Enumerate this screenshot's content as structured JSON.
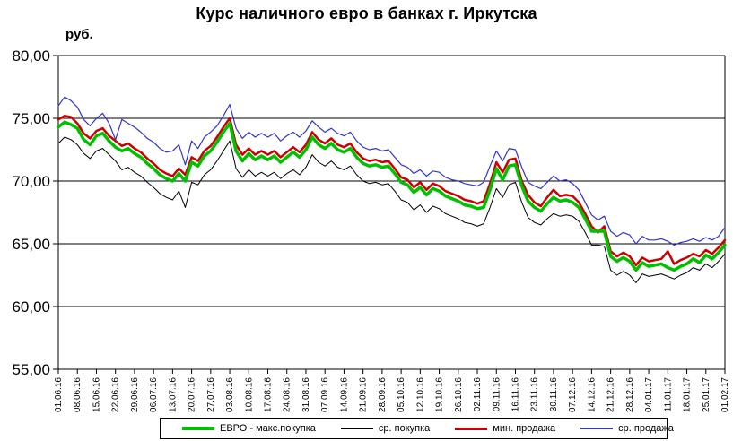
{
  "title": "Курс наличного евро в банках г. Иркутска",
  "y_axis_unit_label": "руб.",
  "chart_data": {
    "type": "line",
    "title": "Курс наличного евро в банках г. Иркутска",
    "xlabel": "",
    "ylabel": "руб.",
    "ylim": [
      55,
      80
    ],
    "grid": true,
    "legend_position": "bottom",
    "y_ticks": [
      {
        "label": "80,00",
        "value": 80
      },
      {
        "label": "75,00",
        "value": 75
      },
      {
        "label": "70,00",
        "value": 70
      },
      {
        "label": "65,00",
        "value": 65
      },
      {
        "label": "60,00",
        "value": 60
      },
      {
        "label": "55,00",
        "value": 55
      }
    ],
    "categories": [
      "01.06.16",
      "08.06.16",
      "15.06.16",
      "22.06.16",
      "29.06.16",
      "06.07.16",
      "13.07.16",
      "20.07.16",
      "27.07.16",
      "03.08.16",
      "10.08.16",
      "17.08.16",
      "24.08.16",
      "31.08.16",
      "07.09.16",
      "14.09.16",
      "21.09.16",
      "28.09.16",
      "05.10.16",
      "12.10.16",
      "19.10.16",
      "26.10.16",
      "02.11.16",
      "09.11.16",
      "16.11.16",
      "23.11.16",
      "30.11.16",
      "07.12.16",
      "14.12.16",
      "21.12.16",
      "28.12.16",
      "04.01.17",
      "11.01.17",
      "18.01.17",
      "25.01.17",
      "01.02.17"
    ],
    "points_per_tick_interval": 3,
    "draw_order": [
      3,
      1,
      2,
      0
    ],
    "series": [
      {
        "name": "ЕВРО - макс.покупка",
        "color": "#00C000",
        "width": 3.5,
        "values": [
          74.3,
          74.7,
          74.5,
          74.2,
          73.3,
          72.9,
          73.6,
          73.8,
          73.2,
          72.7,
          72.4,
          72.6,
          72.2,
          71.9,
          71.4,
          71.0,
          70.5,
          70.2,
          70.0,
          70.6,
          70.0,
          71.5,
          71.2,
          72.0,
          72.4,
          73.1,
          73.9,
          74.6,
          72.4,
          71.6,
          72.2,
          71.7,
          72.0,
          71.7,
          72.0,
          71.5,
          71.9,
          72.3,
          71.9,
          72.5,
          73.5,
          72.9,
          72.6,
          73.0,
          72.5,
          72.3,
          72.6,
          71.9,
          71.4,
          71.2,
          71.3,
          71.1,
          71.2,
          70.6,
          69.9,
          69.7,
          69.1,
          69.5,
          68.9,
          69.4,
          69.2,
          68.8,
          68.6,
          68.4,
          68.1,
          68.0,
          67.8,
          67.9,
          69.3,
          71.0,
          70.1,
          71.2,
          71.3,
          69.6,
          68.4,
          67.9,
          67.6,
          68.2,
          68.7,
          68.4,
          68.5,
          68.3,
          67.9,
          67.0,
          66.0,
          66.0,
          66.0,
          64.0,
          63.6,
          63.9,
          63.6,
          62.9,
          63.5,
          63.2,
          63.3,
          63.4,
          63.1,
          62.9,
          63.2,
          63.4,
          63.8,
          63.5,
          64.1,
          63.8,
          64.3,
          64.9
        ]
      },
      {
        "name": "ср. покупка",
        "color": "#000000",
        "width": 1,
        "values": [
          73.0,
          73.5,
          73.3,
          72.9,
          72.2,
          71.8,
          72.4,
          72.6,
          72.1,
          71.6,
          70.9,
          71.1,
          70.7,
          70.4,
          69.9,
          69.5,
          69.0,
          68.7,
          68.5,
          69.2,
          67.9,
          69.9,
          69.7,
          70.5,
          70.9,
          71.6,
          72.4,
          73.2,
          71.0,
          70.3,
          70.9,
          70.4,
          70.7,
          70.4,
          70.7,
          70.2,
          70.6,
          70.9,
          70.5,
          71.1,
          72.1,
          71.5,
          71.2,
          71.6,
          71.1,
          70.9,
          71.2,
          70.5,
          70.0,
          69.8,
          69.9,
          69.7,
          69.8,
          69.2,
          68.5,
          68.3,
          67.7,
          68.1,
          67.5,
          68.0,
          67.8,
          67.4,
          67.2,
          67.0,
          66.7,
          66.6,
          66.4,
          66.6,
          67.9,
          69.4,
          68.7,
          69.7,
          69.9,
          68.3,
          67.1,
          66.7,
          66.5,
          67.0,
          67.4,
          67.2,
          67.3,
          67.2,
          66.8,
          65.9,
          64.9,
          64.9,
          64.8,
          62.9,
          62.5,
          62.8,
          62.5,
          61.9,
          62.6,
          62.4,
          62.5,
          62.6,
          62.4,
          62.2,
          62.5,
          62.7,
          63.1,
          62.9,
          63.4,
          63.1,
          63.6,
          64.2
        ]
      },
      {
        "name": "мин. продажа",
        "color": "#CC0000",
        "width": 2.5,
        "values": [
          74.9,
          75.2,
          75.1,
          74.6,
          73.8,
          73.4,
          74.0,
          74.2,
          73.6,
          73.2,
          72.8,
          73.0,
          72.6,
          72.3,
          71.8,
          71.4,
          70.9,
          70.6,
          70.4,
          71.0,
          70.5,
          71.9,
          71.6,
          72.4,
          72.8,
          73.5,
          74.3,
          75.0,
          72.9,
          72.1,
          72.6,
          72.1,
          72.4,
          72.1,
          72.4,
          71.9,
          72.3,
          72.7,
          72.3,
          72.9,
          73.9,
          73.3,
          73.0,
          73.4,
          72.9,
          72.7,
          73.0,
          72.3,
          71.8,
          71.6,
          71.7,
          71.5,
          71.6,
          71.0,
          70.3,
          70.1,
          69.5,
          69.9,
          69.3,
          69.8,
          69.6,
          69.2,
          69.0,
          68.8,
          68.5,
          68.4,
          68.2,
          68.4,
          69.8,
          71.5,
          70.7,
          71.7,
          71.8,
          70.0,
          68.9,
          68.3,
          68.0,
          68.7,
          69.3,
          68.8,
          68.9,
          68.8,
          68.3,
          67.4,
          66.4,
          65.9,
          66.4,
          64.4,
          64.0,
          64.3,
          64.0,
          63.3,
          63.9,
          63.6,
          63.7,
          63.8,
          64.4,
          63.4,
          63.7,
          63.9,
          64.2,
          64.0,
          64.5,
          64.2,
          64.7,
          65.3
        ]
      },
      {
        "name": "ср. продажа",
        "color": "#3333CC",
        "width": 1.2,
        "values": [
          76.0,
          76.7,
          76.4,
          75.9,
          74.9,
          74.4,
          75.0,
          75.4,
          74.6,
          73.3,
          74.9,
          74.6,
          74.3,
          73.9,
          73.4,
          73.1,
          72.6,
          72.3,
          72.4,
          72.9,
          71.3,
          73.2,
          72.6,
          73.5,
          73.9,
          74.4,
          75.2,
          76.1,
          74.2,
          73.4,
          73.9,
          73.5,
          73.8,
          73.5,
          73.8,
          73.2,
          73.6,
          73.9,
          73.5,
          74.0,
          74.8,
          74.3,
          73.9,
          74.2,
          73.8,
          73.6,
          73.9,
          73.2,
          72.7,
          72.5,
          72.6,
          72.4,
          72.5,
          71.9,
          71.3,
          71.1,
          70.6,
          70.9,
          70.4,
          70.8,
          70.7,
          70.3,
          70.1,
          70.0,
          69.8,
          69.7,
          69.6,
          69.9,
          71.2,
          72.4,
          71.6,
          72.6,
          72.5,
          71.1,
          69.9,
          69.6,
          69.4,
          69.9,
          70.4,
          70.0,
          70.1,
          69.8,
          69.3,
          68.3,
          67.3,
          66.9,
          67.2,
          66.0,
          65.6,
          65.9,
          65.7,
          65.0,
          65.6,
          65.3,
          65.3,
          65.4,
          65.2,
          64.9,
          65.1,
          65.2,
          65.4,
          65.2,
          65.5,
          65.3,
          65.6,
          66.3
        ]
      }
    ]
  }
}
